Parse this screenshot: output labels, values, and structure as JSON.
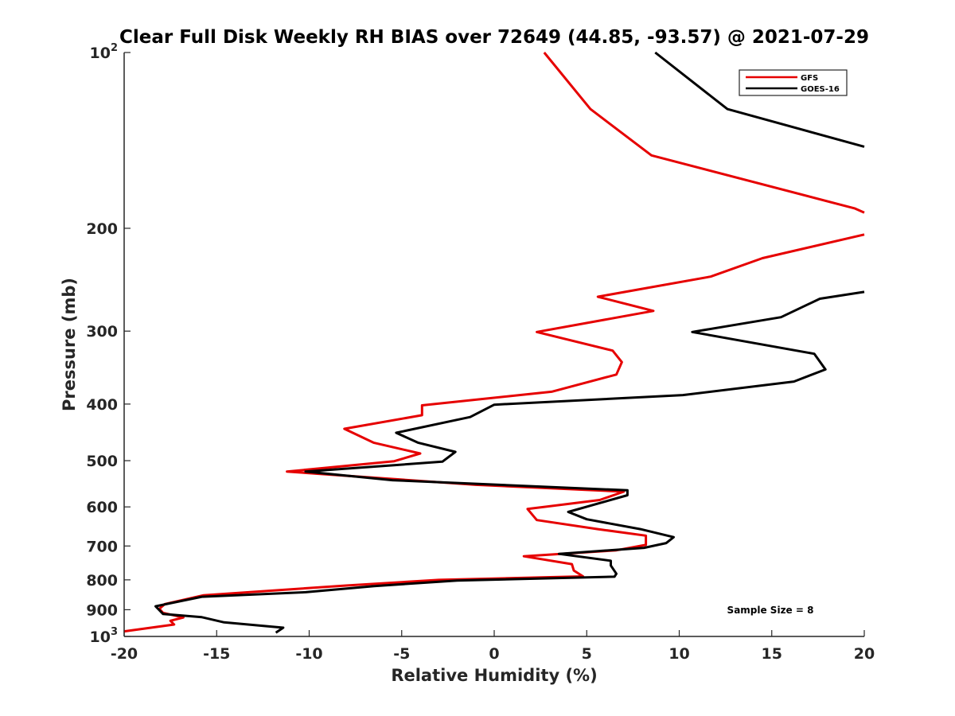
{
  "chart_data": {
    "type": "line",
    "title": "Clear Full Disk Weekly RH BIAS over 72649 (44.85, -93.57) @ 2021-07-29",
    "xlabel": "Relative Humidity (%)",
    "ylabel": "Pressure (mb)",
    "xlim": [
      -20,
      20
    ],
    "ylim": [
      100,
      1000
    ],
    "y_scale": "log",
    "y_reversed": true,
    "grid": false,
    "legend_position": "top-right",
    "x_ticks": [
      -20,
      -15,
      -10,
      -5,
      0,
      5,
      10,
      15,
      20
    ],
    "x_tick_labels": [
      "-20",
      "-15",
      "-10",
      "-5",
      "0",
      "5",
      "10",
      "15",
      "20"
    ],
    "y_ticks": [
      {
        "value": 100,
        "label": "10",
        "sup": "2"
      },
      {
        "value": 200,
        "label": "200",
        "sup": ""
      },
      {
        "value": 300,
        "label": "300",
        "sup": ""
      },
      {
        "value": 400,
        "label": "400",
        "sup": ""
      },
      {
        "value": 500,
        "label": "500",
        "sup": ""
      },
      {
        "value": 600,
        "label": "600",
        "sup": ""
      },
      {
        "value": 700,
        "label": "700",
        "sup": ""
      },
      {
        "value": 800,
        "label": "800",
        "sup": ""
      },
      {
        "value": 900,
        "label": "900",
        "sup": ""
      },
      {
        "value": 1000,
        "label": "10",
        "sup": "3"
      }
    ],
    "annotation": "Sample Size = 8",
    "series": [
      {
        "name": "GFS",
        "color": "#e60000",
        "points": [
          [
            2.7,
            100
          ],
          [
            5.2,
            125
          ],
          [
            8.5,
            150
          ],
          [
            19.5,
            185
          ],
          [
            20,
            188
          ],
          null,
          [
            20,
            205
          ],
          [
            14.5,
            225
          ],
          [
            11.7,
            242
          ],
          [
            5.6,
            262
          ],
          [
            8.6,
            277
          ],
          [
            2.3,
            301
          ],
          [
            6.4,
            324
          ],
          [
            6.9,
            339
          ],
          [
            6.6,
            356
          ],
          [
            3.1,
            381
          ],
          [
            -3.9,
            402
          ],
          [
            -3.9,
            418
          ],
          [
            -8.1,
            441
          ],
          [
            -6.5,
            466
          ],
          [
            -4,
            486
          ],
          [
            -5.4,
            501
          ],
          [
            -11.2,
            522
          ],
          [
            -1,
            550
          ],
          [
            7,
            565
          ],
          [
            5.7,
            584
          ],
          [
            1.8,
            605
          ],
          [
            2.3,
            632
          ],
          [
            5.6,
            655
          ],
          [
            8.2,
            672
          ],
          [
            8.2,
            697
          ],
          [
            6.6,
            712
          ],
          [
            1.6,
            729
          ],
          [
            4.2,
            752
          ],
          [
            4.3,
            771
          ],
          [
            4.8,
            789
          ],
          [
            -3,
            800
          ],
          [
            -8,
            818
          ],
          [
            -15.7,
            850
          ],
          [
            -17.8,
            880
          ],
          [
            -18.1,
            897
          ],
          [
            -17.9,
            911
          ],
          [
            -16.8,
            928
          ],
          [
            -17.5,
            940
          ],
          [
            -17.3,
            954
          ],
          [
            -20,
            980
          ]
        ]
      },
      {
        "name": "GOES-16",
        "color": "#000000",
        "points": [
          [
            8.7,
            100
          ],
          [
            12.6,
            125
          ],
          [
            20,
            145
          ],
          null,
          [
            20,
            257
          ],
          [
            17.6,
            264
          ],
          [
            15.5,
            284
          ],
          [
            10.7,
            301
          ],
          [
            17.3,
            328
          ],
          [
            17.9,
            349
          ],
          [
            16.2,
            366
          ],
          [
            10.2,
            386
          ],
          [
            0,
            401
          ],
          [
            -1.3,
            421
          ],
          [
            -5.3,
            448
          ],
          [
            -4.1,
            466
          ],
          [
            -2.1,
            483
          ],
          [
            -2.8,
            502
          ],
          [
            -10.2,
            522
          ],
          [
            -5.5,
            540
          ],
          [
            7.2,
            562
          ],
          [
            7.2,
            573
          ],
          [
            4,
            612
          ],
          [
            5,
            630
          ],
          [
            7.9,
            655
          ],
          [
            9.7,
            676
          ],
          [
            9.3,
            692
          ],
          [
            8.1,
            705
          ],
          [
            3.5,
            722
          ],
          [
            6.3,
            742
          ],
          [
            6.3,
            756
          ],
          [
            6.6,
            781
          ],
          [
            6.5,
            790
          ],
          [
            -2,
            802
          ],
          [
            -6.5,
            820
          ],
          [
            -10.2,
            840
          ],
          [
            -15.8,
            855
          ],
          [
            -18.3,
            888
          ],
          [
            -17.9,
            915
          ],
          [
            -15.8,
            927
          ],
          [
            -14.6,
            946
          ],
          [
            -11.4,
            966
          ],
          [
            -11.8,
            985
          ]
        ]
      }
    ]
  }
}
